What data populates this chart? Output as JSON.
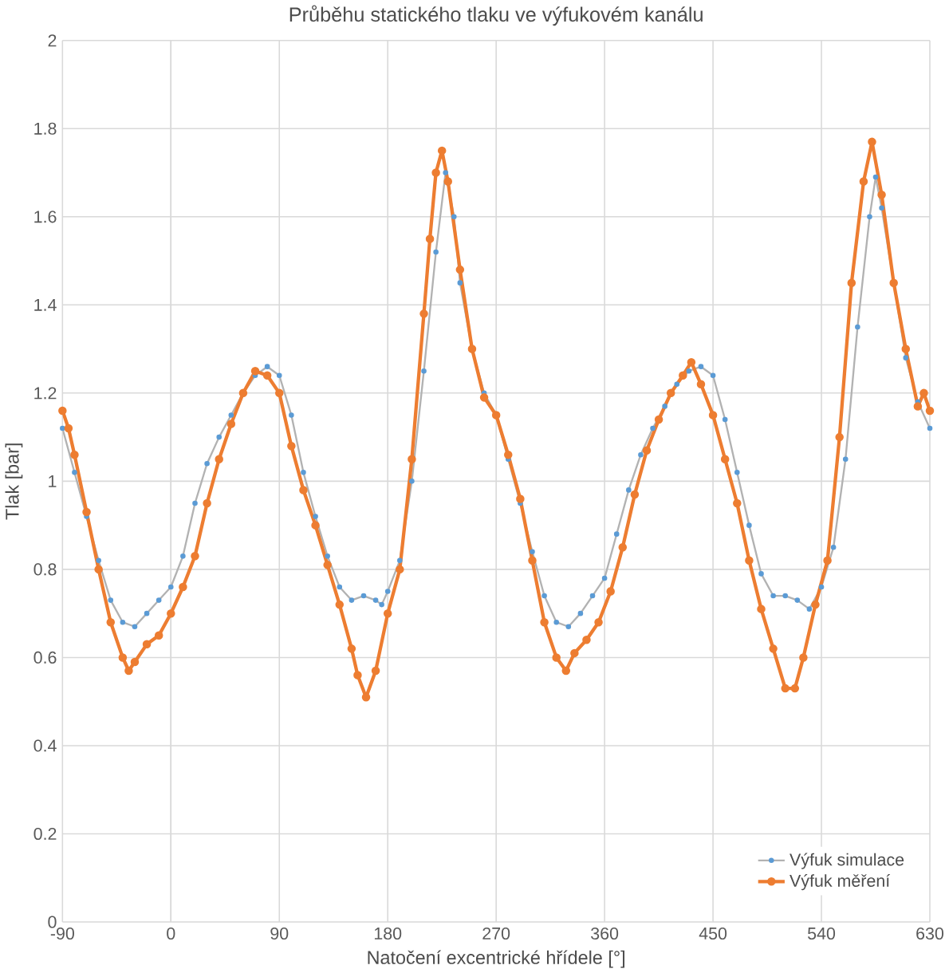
{
  "chart_data": {
    "type": "line",
    "title": "Průběhu statického tlaku ve výfukovém kanálu",
    "xlabel": "Natočení excentrické hřídele [°]",
    "ylabel": "Tlak [bar]",
    "xlim": [
      -90,
      630
    ],
    "xticks": [
      -90,
      0,
      90,
      180,
      270,
      360,
      450,
      540,
      630
    ],
    "ylim": [
      0,
      2
    ],
    "yticks": [
      0,
      0.2,
      0.4,
      0.6,
      0.8,
      1,
      1.2,
      1.4,
      1.6,
      1.8,
      2
    ],
    "grid": true,
    "legend": "bottom right",
    "marker": "circle",
    "line_style": "solid",
    "series": [
      {
        "name": "Výfuk simulace",
        "color": "#5b9bd5",
        "x": [
          -90,
          -80,
          -70,
          -60,
          -50,
          -40,
          -30,
          -20,
          -10,
          0,
          10,
          20,
          30,
          40,
          50,
          60,
          70,
          80,
          90,
          100,
          110,
          120,
          130,
          140,
          150,
          160,
          170,
          175,
          180,
          190,
          200,
          210,
          220,
          228,
          235,
          240,
          250,
          260,
          270,
          280,
          290,
          300,
          310,
          320,
          330,
          340,
          350,
          360,
          370,
          380,
          390,
          400,
          410,
          420,
          430,
          440,
          450,
          460,
          470,
          480,
          490,
          500,
          510,
          520,
          530,
          540,
          550,
          560,
          570,
          580,
          585,
          590,
          600,
          610,
          620,
          630
        ],
        "values": [
          1.12,
          1.02,
          0.92,
          0.82,
          0.73,
          0.68,
          0.67,
          0.7,
          0.73,
          0.76,
          0.83,
          0.95,
          1.04,
          1.1,
          1.15,
          1.2,
          1.24,
          1.26,
          1.24,
          1.15,
          1.02,
          0.92,
          0.83,
          0.76,
          0.73,
          0.74,
          0.73,
          0.72,
          0.75,
          0.82,
          1.0,
          1.25,
          1.52,
          1.7,
          1.6,
          1.45,
          1.3,
          1.2,
          1.15,
          1.05,
          0.95,
          0.84,
          0.74,
          0.68,
          0.67,
          0.7,
          0.74,
          0.78,
          0.88,
          0.98,
          1.06,
          1.12,
          1.17,
          1.22,
          1.25,
          1.26,
          1.24,
          1.14,
          1.02,
          0.9,
          0.79,
          0.74,
          0.74,
          0.73,
          0.71,
          0.76,
          0.85,
          1.05,
          1.35,
          1.6,
          1.69,
          1.62,
          1.45,
          1.28,
          1.18,
          1.12
        ]
      },
      {
        "name": "Výfuk měření",
        "color": "#ed7d31",
        "x": [
          -90,
          -85,
          -80,
          -70,
          -60,
          -50,
          -40,
          -35,
          -30,
          -20,
          -10,
          0,
          10,
          20,
          30,
          40,
          50,
          60,
          70,
          80,
          90,
          100,
          110,
          120,
          130,
          140,
          150,
          155,
          162,
          170,
          180,
          190,
          200,
          210,
          215,
          220,
          225,
          230,
          240,
          250,
          260,
          270,
          280,
          290,
          300,
          310,
          320,
          328,
          335,
          345,
          355,
          365,
          375,
          385,
          395,
          405,
          415,
          425,
          432,
          440,
          450,
          460,
          470,
          480,
          490,
          500,
          510,
          518,
          525,
          535,
          545,
          555,
          565,
          575,
          582,
          590,
          600,
          610,
          620,
          625,
          630
        ],
        "values": [
          1.16,
          1.12,
          1.06,
          0.93,
          0.8,
          0.68,
          0.6,
          0.57,
          0.59,
          0.63,
          0.65,
          0.7,
          0.76,
          0.83,
          0.95,
          1.05,
          1.13,
          1.2,
          1.25,
          1.24,
          1.2,
          1.08,
          0.98,
          0.9,
          0.81,
          0.72,
          0.62,
          0.56,
          0.51,
          0.57,
          0.7,
          0.8,
          1.05,
          1.38,
          1.55,
          1.7,
          1.75,
          1.68,
          1.48,
          1.3,
          1.19,
          1.15,
          1.06,
          0.96,
          0.82,
          0.68,
          0.6,
          0.57,
          0.61,
          0.64,
          0.68,
          0.75,
          0.85,
          0.97,
          1.07,
          1.14,
          1.2,
          1.24,
          1.27,
          1.22,
          1.15,
          1.05,
          0.95,
          0.82,
          0.71,
          0.62,
          0.53,
          0.53,
          0.6,
          0.72,
          0.82,
          1.1,
          1.45,
          1.68,
          1.77,
          1.65,
          1.45,
          1.3,
          1.17,
          1.2,
          1.16
        ]
      }
    ]
  }
}
